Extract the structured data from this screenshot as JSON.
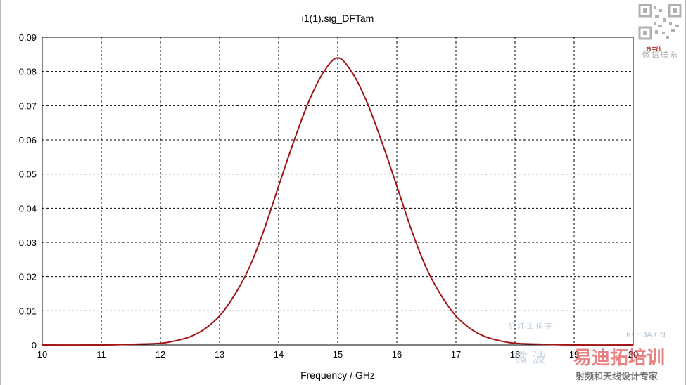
{
  "chart_data": {
    "type": "line",
    "title": "i1(1).sig_DFTam",
    "xlabel": "Frequency / GHz",
    "ylabel": "",
    "xlim": [
      10,
      20
    ],
    "ylim": [
      0,
      0.09
    ],
    "xticks": [
      "10",
      "11",
      "12",
      "13",
      "14",
      "15",
      "16",
      "17",
      "18",
      "19",
      "20"
    ],
    "yticks": [
      "0",
      "0.01",
      "0.02",
      "0.03",
      "0.04",
      "0.05",
      "0.06",
      "0.07",
      "0.08",
      "0.09"
    ],
    "grid": true,
    "legend_text": "a=8",
    "series": [
      {
        "color": "#a31515",
        "x": [
          10,
          11,
          11.5,
          12,
          12.25,
          12.5,
          12.75,
          13,
          13.25,
          13.5,
          13.75,
          14,
          14.25,
          14.5,
          14.75,
          15,
          15.25,
          15.5,
          15.75,
          16,
          16.25,
          16.5,
          16.75,
          17,
          17.25,
          17.5,
          17.75,
          18,
          18.5,
          19,
          20
        ],
        "y": [
          0,
          0,
          0.0002,
          0.0005,
          0.0012,
          0.0024,
          0.0047,
          0.0085,
          0.0145,
          0.0225,
          0.0335,
          0.0465,
          0.0592,
          0.0708,
          0.0795,
          0.084,
          0.0795,
          0.0708,
          0.0592,
          0.0465,
          0.0335,
          0.0225,
          0.0145,
          0.0085,
          0.0047,
          0.0024,
          0.0012,
          0.0005,
          0.0002,
          0,
          0
        ]
      }
    ]
  },
  "watermark": {
    "qr_caption": "微信联系",
    "site": "RFEDA.CN",
    "brand": "易迪拓培训",
    "tagline": "射频和天线设计专家",
    "left_word": "微 波",
    "small_line": "明 灯 上 传 子"
  },
  "colors": {
    "curve": "#a31515",
    "grid": "#000000",
    "watermark": "#9bb3c9",
    "watermark_red": "#e25a5a"
  }
}
